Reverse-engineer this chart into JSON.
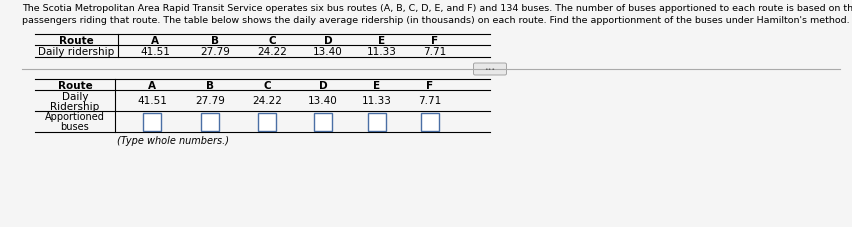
{
  "title_line1": "The Scotia Metropolitan Area Rapid Transit Service operates six bus routes (A, B, C, D, E, and F) and 134 buses. The number of buses apportioned to each route is based on the number of",
  "title_line2": "passengers riding that route. The table below shows the daily average ridership (in thousands) on each route. Find the apportionment of the buses under Hamilton's method.",
  "routes": [
    "A",
    "B",
    "C",
    "D",
    "E",
    "F"
  ],
  "ridership": [
    41.51,
    27.79,
    24.22,
    13.4,
    11.33,
    7.71
  ],
  "bg_color": "#f5f5f5",
  "text_color": "#000000",
  "blue_color": "#4a6fa5",
  "note": "(Type whole numbers.)",
  "top_table_route_label": "Route",
  "top_table_ridership_label": "Daily ridership",
  "bot_table_row1": "Route",
  "bot_table_row2a": "Daily",
  "bot_table_row2b": "Ridership",
  "bot_table_row3a": "Apportioned",
  "bot_table_row3b": "buses"
}
